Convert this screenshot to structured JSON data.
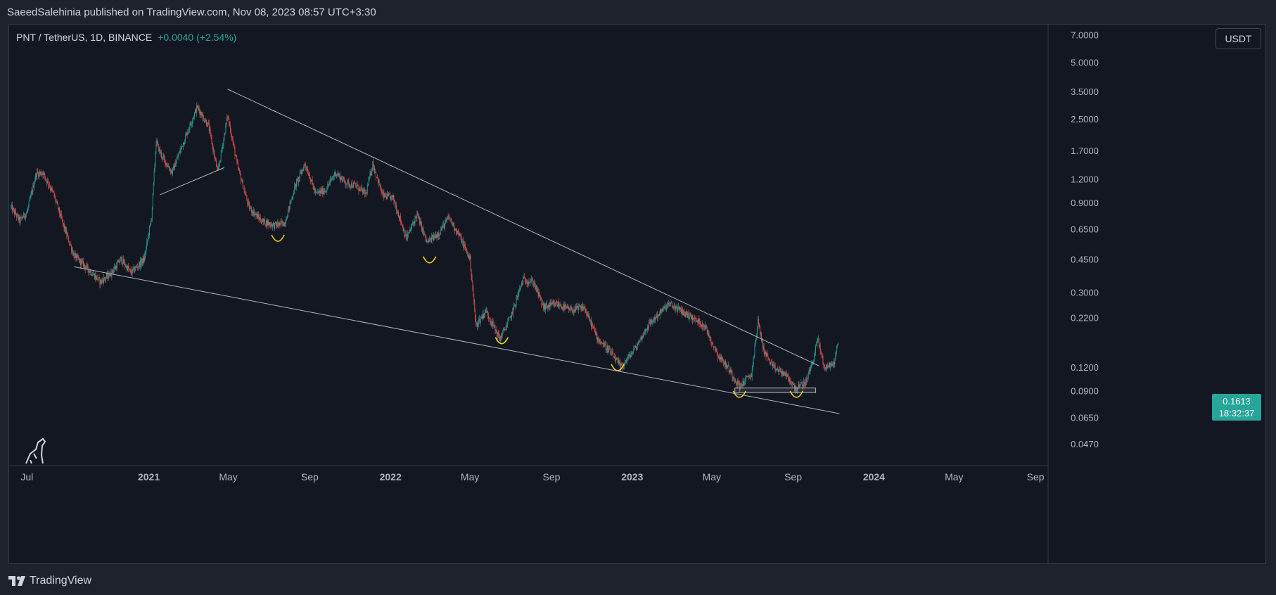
{
  "header": {
    "published": "SaeedSalehinia published on TradingView.com, Nov 08, 2023 08:57 UTC+3:30"
  },
  "legend": {
    "symbol": "PNT / TetherUS, 1D, BINANCE",
    "change": "+0.0040 (+2.54%)"
  },
  "currency": "USDT",
  "price_tag": {
    "price": "0.1613",
    "countdown": "18:32:37"
  },
  "footer": {
    "brand": "TradingView"
  },
  "colors": {
    "up": "#26a69a",
    "down": "#ef5350",
    "trendline": "#b2b5be",
    "annotation": "#f0d11e",
    "background": "#131722"
  },
  "chart_data": {
    "type": "candlestick",
    "scale": "log",
    "ylim": [
      0.036,
      8.0
    ],
    "x_range": [
      "2020-06-03",
      "2024-09-20"
    ],
    "y_ticks": [
      7.0,
      5.0,
      3.5,
      2.5,
      1.7,
      1.2,
      0.9,
      0.65,
      0.45,
      0.3,
      0.22,
      0.12,
      0.09,
      0.065,
      0.047
    ],
    "y_tick_labels": [
      "7.0000",
      "5.0000",
      "3.5000",
      "2.5000",
      "1.7000",
      "1.2000",
      "0.9000",
      "0.6500",
      "0.4500",
      "0.3000",
      "0.2200",
      "0.1200",
      "0.0900",
      "0.0650",
      "0.0470"
    ],
    "x_ticks": [
      {
        "label": "Jul",
        "date": "2020-07-01",
        "bold": false
      },
      {
        "label": "2021",
        "date": "2021-01-01",
        "bold": true
      },
      {
        "label": "May",
        "date": "2021-05-01",
        "bold": false
      },
      {
        "label": "Sep",
        "date": "2021-09-01",
        "bold": false
      },
      {
        "label": "2022",
        "date": "2022-01-01",
        "bold": true
      },
      {
        "label": "May",
        "date": "2022-05-01",
        "bold": false
      },
      {
        "label": "Sep",
        "date": "2022-09-01",
        "bold": false
      },
      {
        "label": "2023",
        "date": "2023-01-01",
        "bold": true
      },
      {
        "label": "May",
        "date": "2023-05-01",
        "bold": false
      },
      {
        "label": "Sep",
        "date": "2023-09-01",
        "bold": false
      },
      {
        "label": "2024",
        "date": "2024-01-01",
        "bold": true
      },
      {
        "label": "May",
        "date": "2024-05-01",
        "bold": false
      },
      {
        "label": "Sep",
        "date": "2024-09-01",
        "bold": false
      }
    ],
    "last_price": 0.1613,
    "price_path": [
      [
        "2020-06-07",
        0.85
      ],
      [
        "2020-06-20",
        0.72
      ],
      [
        "2020-07-01",
        0.8
      ],
      [
        "2020-07-15",
        1.28
      ],
      [
        "2020-07-25",
        1.3
      ],
      [
        "2020-08-10",
        1.0
      ],
      [
        "2020-08-25",
        0.68
      ],
      [
        "2020-09-10",
        0.47
      ],
      [
        "2020-10-01",
        0.4
      ],
      [
        "2020-10-20",
        0.34
      ],
      [
        "2020-11-05",
        0.38
      ],
      [
        "2020-11-20",
        0.45
      ],
      [
        "2020-12-05",
        0.38
      ],
      [
        "2020-12-25",
        0.45
      ],
      [
        "2021-01-05",
        0.75
      ],
      [
        "2021-01-12",
        1.9
      ],
      [
        "2021-01-20",
        1.6
      ],
      [
        "2021-02-05",
        1.3
      ],
      [
        "2021-02-25",
        2.0
      ],
      [
        "2021-03-15",
        2.9
      ],
      [
        "2021-04-01",
        2.3
      ],
      [
        "2021-04-15",
        1.3
      ],
      [
        "2021-04-30",
        2.6
      ],
      [
        "2021-05-15",
        1.4
      ],
      [
        "2021-06-01",
        0.85
      ],
      [
        "2021-06-20",
        0.72
      ],
      [
        "2021-07-10",
        0.68
      ],
      [
        "2021-07-25",
        0.7
      ],
      [
        "2021-08-10",
        1.1
      ],
      [
        "2021-08-25",
        1.45
      ],
      [
        "2021-09-10",
        1.0
      ],
      [
        "2021-09-25",
        1.05
      ],
      [
        "2021-10-10",
        1.3
      ],
      [
        "2021-10-25",
        1.15
      ],
      [
        "2021-11-10",
        1.1
      ],
      [
        "2021-11-25",
        1.0
      ],
      [
        "2021-12-05",
        1.45
      ],
      [
        "2021-12-20",
        0.98
      ],
      [
        "2022-01-05",
        0.95
      ],
      [
        "2022-01-25",
        0.58
      ],
      [
        "2022-02-10",
        0.78
      ],
      [
        "2022-02-25",
        0.55
      ],
      [
        "2022-03-15",
        0.62
      ],
      [
        "2022-03-30",
        0.75
      ],
      [
        "2022-04-15",
        0.6
      ],
      [
        "2022-05-01",
        0.45
      ],
      [
        "2022-05-10",
        0.2
      ],
      [
        "2022-05-25",
        0.24
      ],
      [
        "2022-06-15",
        0.17
      ],
      [
        "2022-07-01",
        0.22
      ],
      [
        "2022-07-20",
        0.35
      ],
      [
        "2022-08-05",
        0.34
      ],
      [
        "2022-08-20",
        0.25
      ],
      [
        "2022-09-10",
        0.26
      ],
      [
        "2022-09-30",
        0.24
      ],
      [
        "2022-10-20",
        0.25
      ],
      [
        "2022-11-10",
        0.17
      ],
      [
        "2022-11-25",
        0.15
      ],
      [
        "2022-12-15",
        0.12
      ],
      [
        "2023-01-05",
        0.15
      ],
      [
        "2023-01-25",
        0.2
      ],
      [
        "2023-02-10",
        0.23
      ],
      [
        "2023-02-25",
        0.26
      ],
      [
        "2023-03-15",
        0.24
      ],
      [
        "2023-04-01",
        0.22
      ],
      [
        "2023-04-20",
        0.2
      ],
      [
        "2023-05-10",
        0.14
      ],
      [
        "2023-05-25",
        0.12
      ],
      [
        "2023-06-12",
        0.095
      ],
      [
        "2023-06-30",
        0.11
      ],
      [
        "2023-07-10",
        0.21
      ],
      [
        "2023-07-18",
        0.15
      ],
      [
        "2023-08-01",
        0.12
      ],
      [
        "2023-08-20",
        0.11
      ],
      [
        "2023-09-05",
        0.092
      ],
      [
        "2023-09-20",
        0.1
      ],
      [
        "2023-10-01",
        0.13
      ],
      [
        "2023-10-08",
        0.17
      ],
      [
        "2023-10-18",
        0.12
      ],
      [
        "2023-11-01",
        0.125
      ],
      [
        "2023-11-08",
        0.1613
      ]
    ],
    "trendlines": [
      {
        "from": [
          "2021-04-30",
          3.6
        ],
        "to": [
          "2023-10-10",
          0.122
        ]
      },
      {
        "from": [
          "2020-09-10",
          0.41
        ],
        "to": [
          "2023-11-10",
          0.068
        ]
      },
      {
        "from": [
          "2021-01-18",
          0.99
        ],
        "to": [
          "2021-04-25",
          1.38
        ]
      }
    ],
    "support_zone": {
      "from": "2023-06-05",
      "to": "2023-10-05",
      "low": 0.088,
      "high": 0.093
    },
    "bottom_markers": [
      [
        "2021-07-15",
        0.56
      ],
      [
        "2022-03-01",
        0.43
      ],
      [
        "2022-06-18",
        0.16
      ],
      [
        "2022-12-10",
        0.115
      ],
      [
        "2023-06-12",
        0.083
      ],
      [
        "2023-09-06",
        0.083
      ]
    ]
  }
}
